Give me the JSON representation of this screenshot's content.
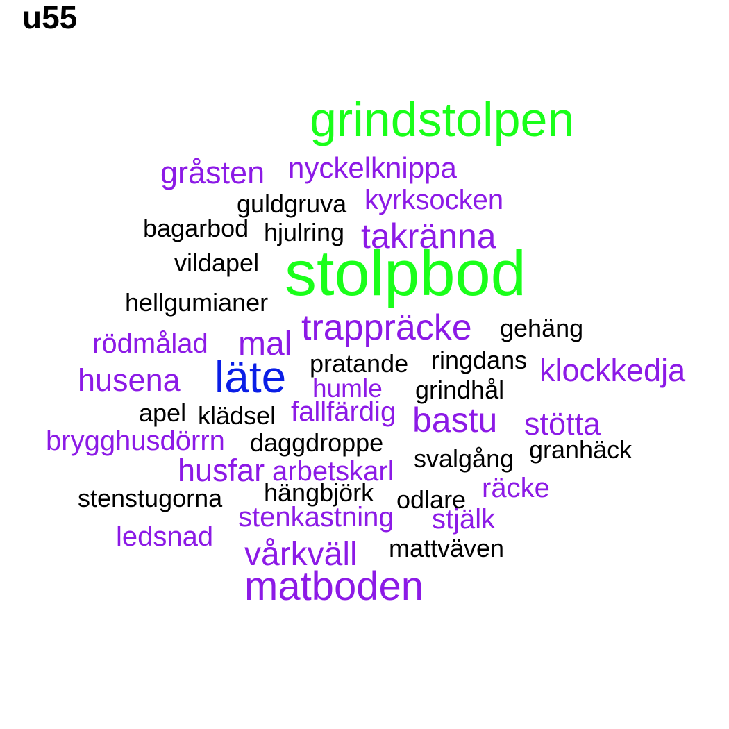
{
  "title": "u55",
  "colors": {
    "green": "#1aff1a",
    "blue": "#0a1ee6",
    "purple": "#8c1ae6",
    "black": "#000000"
  },
  "words": [
    {
      "text": "grindstolpen",
      "color": "green"
    },
    {
      "text": "stolpbod",
      "color": "green"
    },
    {
      "text": "läte",
      "color": "blue"
    },
    {
      "text": "gråsten",
      "color": "purple"
    },
    {
      "text": "nyckelknippa",
      "color": "purple"
    },
    {
      "text": "kyrksocken",
      "color": "purple"
    },
    {
      "text": "takränna",
      "color": "purple"
    },
    {
      "text": "trappräcke",
      "color": "purple"
    },
    {
      "text": "rödmålad",
      "color": "purple"
    },
    {
      "text": "mal",
      "color": "purple"
    },
    {
      "text": "husena",
      "color": "purple"
    },
    {
      "text": "klockkedja",
      "color": "purple"
    },
    {
      "text": "humle",
      "color": "purple"
    },
    {
      "text": "fallfärdig",
      "color": "purple"
    },
    {
      "text": "bastu",
      "color": "purple"
    },
    {
      "text": "stötta",
      "color": "purple"
    },
    {
      "text": "brygghusdörrn",
      "color": "purple"
    },
    {
      "text": "husfar",
      "color": "purple"
    },
    {
      "text": "arbetskarl",
      "color": "purple"
    },
    {
      "text": "räcke",
      "color": "purple"
    },
    {
      "text": "stenkastning",
      "color": "purple"
    },
    {
      "text": "stjälk",
      "color": "purple"
    },
    {
      "text": "ledsnad",
      "color": "purple"
    },
    {
      "text": "vårkväll",
      "color": "purple"
    },
    {
      "text": "matboden",
      "color": "purple"
    },
    {
      "text": "guldgruva",
      "color": "black"
    },
    {
      "text": "bagarbod",
      "color": "black"
    },
    {
      "text": "hjulring",
      "color": "black"
    },
    {
      "text": "vildapel",
      "color": "black"
    },
    {
      "text": "hellgumianer",
      "color": "black"
    },
    {
      "text": "gehäng",
      "color": "black"
    },
    {
      "text": "pratande",
      "color": "black"
    },
    {
      "text": "ringdans",
      "color": "black"
    },
    {
      "text": "grindhål",
      "color": "black"
    },
    {
      "text": "apel",
      "color": "black"
    },
    {
      "text": "klädsel",
      "color": "black"
    },
    {
      "text": "daggdroppe",
      "color": "black"
    },
    {
      "text": "svalgång",
      "color": "black"
    },
    {
      "text": "granhäck",
      "color": "black"
    },
    {
      "text": "stenstugorna",
      "color": "black"
    },
    {
      "text": "hängbjörk",
      "color": "black"
    },
    {
      "text": "odlare",
      "color": "black"
    },
    {
      "text": "mattväven",
      "color": "black"
    }
  ]
}
